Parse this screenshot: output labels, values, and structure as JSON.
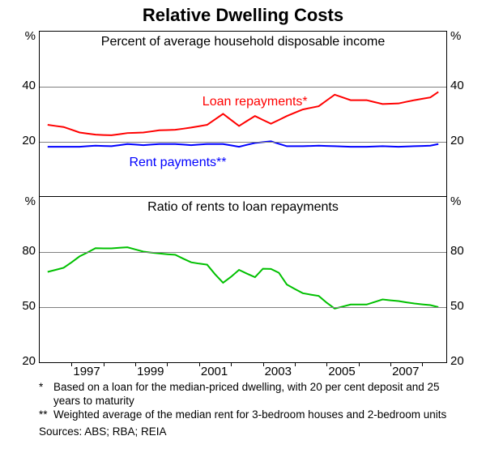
{
  "title": "Relative Dwelling Costs",
  "panel_top": {
    "subtitle": "Percent of average household disposable income",
    "ylim": [
      0,
      60
    ],
    "yticks": [
      20,
      40
    ],
    "grid_color": "#808080",
    "unit_label": "%",
    "series": {
      "loan": {
        "label": "Loan repayments*",
        "color": "#ff0000",
        "linewidth": 2,
        "label_pos": {
          "x": 0.4,
          "y_val": 34
        },
        "x": [
          1995.25,
          1995.5,
          1995.75,
          1996,
          1996.25,
          1996.5,
          1996.75,
          1997,
          1997.25,
          1997.5,
          1997.75,
          1998,
          1998.25,
          1998.5,
          1998.75,
          1999,
          1999.25,
          1999.5,
          1999.75,
          2000,
          2000.25,
          2000.5,
          2000.75,
          2001,
          2001.25,
          2001.5,
          2001.75,
          2002,
          2002.25,
          2002.5,
          2002.75,
          2003,
          2003.25,
          2003.5,
          2003.75,
          2004,
          2004.25,
          2004.5,
          2004.75,
          2005,
          2005.25,
          2005.5,
          2005.75,
          2006,
          2006.25,
          2006.5,
          2006.75,
          2007,
          2007.25,
          2007.5
        ],
        "y": [
          26,
          25.6,
          25.2,
          24.2,
          23.2,
          22.8,
          22.4,
          22.3,
          22.2,
          22.6,
          23,
          23.1,
          23.2,
          23.6,
          24,
          24.1,
          24.2,
          24.6,
          25,
          25.5,
          26,
          28,
          30,
          27.8,
          25.6,
          27.4,
          29.2,
          27.8,
          26.4,
          27.8,
          29.2,
          30.4,
          31.6,
          32.2,
          32.8,
          34.9,
          37,
          36,
          35,
          35,
          35,
          34.3,
          33.6,
          33.7,
          33.8,
          34.4,
          35,
          35.5,
          36,
          38
        ]
      },
      "rent": {
        "label": "Rent payments**",
        "color": "#0000ff",
        "linewidth": 2,
        "label_pos": {
          "x": 0.22,
          "y_val": 12
        },
        "x": [
          1995.25,
          1995.5,
          1995.75,
          1996,
          1996.25,
          1996.5,
          1996.75,
          1997,
          1997.25,
          1997.5,
          1997.75,
          1998,
          1998.25,
          1998.5,
          1998.75,
          1999,
          1999.25,
          1999.5,
          1999.75,
          2000,
          2000.25,
          2000.5,
          2000.75,
          2001,
          2001.25,
          2001.5,
          2001.75,
          2002,
          2002.25,
          2002.5,
          2002.75,
          2003,
          2003.25,
          2003.5,
          2003.75,
          2004,
          2004.25,
          2004.5,
          2004.75,
          2005,
          2005.25,
          2005.5,
          2005.75,
          2006,
          2006.25,
          2006.5,
          2006.75,
          2007,
          2007.25,
          2007.5
        ],
        "y": [
          18,
          18,
          18,
          18,
          18,
          18.2,
          18.4,
          18.3,
          18.2,
          18.6,
          19,
          18.8,
          18.6,
          18.8,
          19,
          19,
          19,
          18.8,
          18.6,
          18.8,
          19,
          19,
          19,
          18.5,
          18,
          18.7,
          19.37,
          19.7,
          20,
          19.1,
          18.2,
          18.2,
          18.2,
          18.3,
          18.4,
          18.3,
          18.2,
          18.1,
          18,
          18,
          18,
          18.1,
          18.2,
          18.1,
          18,
          18.1,
          18.2,
          18.3,
          18.4,
          19
        ]
      }
    }
  },
  "panel_bot": {
    "subtitle": "Ratio of rents to loan repayments",
    "ylim": [
      20,
      110
    ],
    "yticks": [
      50,
      80
    ],
    "grid_color": "#808080",
    "unit_label": "%",
    "series": {
      "ratio": {
        "color": "#00c000",
        "linewidth": 2,
        "x": [
          1995.25,
          1995.5,
          1995.75,
          1996,
          1996.25,
          1996.5,
          1996.75,
          1997,
          1997.25,
          1997.5,
          1997.75,
          1998,
          1998.25,
          1998.5,
          1998.75,
          1999,
          1999.25,
          1999.5,
          1999.75,
          2000,
          2000.25,
          2000.5,
          2000.75,
          2001,
          2001.25,
          2001.5,
          2001.75,
          2002,
          2002.25,
          2002.5,
          2002.75,
          2003,
          2003.25,
          2003.5,
          2003.75,
          2004,
          2004.25,
          2004.5,
          2004.75,
          2005,
          2005.25,
          2005.5,
          2005.75,
          2006,
          2006.25,
          2006.5,
          2006.75,
          2007,
          2007.25,
          2007.5
        ],
        "y": [
          69.2,
          70.3,
          71.4,
          74.4,
          77.6,
          79.8,
          82.1,
          82,
          82,
          82.3,
          82.6,
          81.4,
          80.2,
          79.7,
          79.2,
          78.8,
          78.5,
          76.4,
          74.4,
          73.7,
          73.1,
          67.9,
          63.3,
          66.5,
          70.3,
          68.2,
          66.3,
          70.9,
          70.8,
          68.7,
          62.3,
          59.9,
          57.6,
          56.8,
          56.1,
          52.4,
          49.2,
          50.3,
          51.4,
          51.4,
          51.4,
          52.8,
          54.2,
          53.7,
          53.3,
          52.6,
          52,
          51.5,
          51.1,
          50
        ]
      }
    }
  },
  "x_axis": {
    "range": [
      1995.0,
      2007.75
    ],
    "ticks": [
      1996,
      1997,
      1998,
      1999,
      2000,
      2001,
      2002,
      2003,
      2004,
      2005,
      2006,
      2007
    ],
    "labels": [
      1997,
      1999,
      2001,
      2003,
      2005,
      2007
    ],
    "label_positions": [
      1997,
      1999,
      2001,
      2003,
      2005,
      2007
    ]
  },
  "footnotes": [
    {
      "marker": "*",
      "text": "Based on a loan for the median-priced dwelling, with 20 per cent deposit and 25 years to maturity"
    },
    {
      "marker": "**",
      "text": "Weighted average of the median rent for 3-bedroom houses and 2-bedroom units"
    }
  ],
  "sources": "Sources: ABS; RBA; REIA",
  "colors": {
    "background": "#ffffff",
    "border": "#000000",
    "text": "#000000"
  }
}
